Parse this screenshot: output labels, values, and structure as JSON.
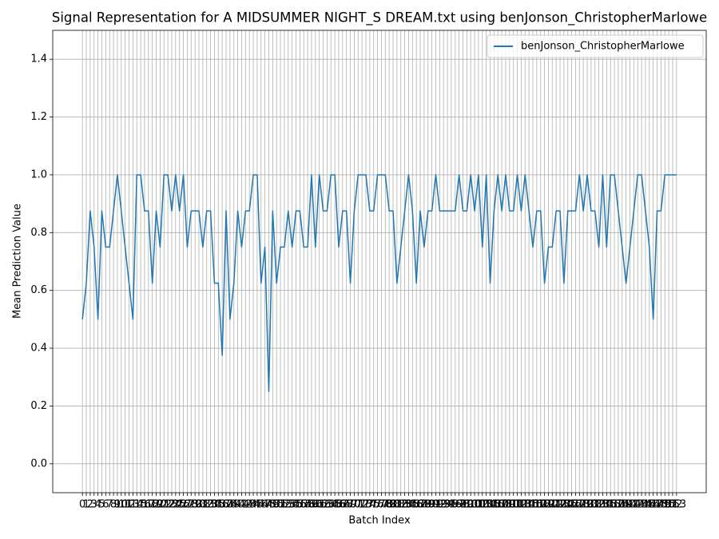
{
  "chart_data": {
    "type": "line",
    "title": "Signal Representation for A MIDSUMMER NIGHT_S DREAM.txt using benJonson_ChristopherMarlowe",
    "xlabel": "Batch Index",
    "ylabel": "Mean Prediction Value",
    "x": [
      0,
      1,
      2,
      3,
      4,
      5,
      6,
      7,
      8,
      9,
      10,
      11,
      12,
      13,
      14,
      15,
      16,
      17,
      18,
      19,
      20,
      21,
      22,
      23,
      24,
      25,
      26,
      27,
      28,
      29,
      30,
      31,
      32,
      33,
      34,
      35,
      36,
      37,
      38,
      39,
      40,
      41,
      42,
      43,
      44,
      45,
      46,
      47,
      48,
      49,
      50,
      51,
      52,
      53,
      54,
      55,
      56,
      57,
      58,
      59,
      60,
      61,
      62,
      63,
      64,
      65,
      66,
      67,
      68,
      69,
      70,
      71,
      72,
      73,
      74,
      75,
      76,
      77,
      78,
      79,
      80,
      81,
      82,
      83,
      84,
      85,
      86,
      87,
      88,
      89,
      90,
      91,
      92,
      93,
      94,
      95,
      96,
      97,
      98,
      99,
      100,
      101,
      102,
      103,
      104,
      105,
      106,
      107,
      108,
      109,
      110,
      111,
      112,
      113,
      114,
      115,
      116,
      117,
      118,
      119,
      120,
      121,
      122,
      123,
      124,
      125,
      126,
      127,
      128,
      129,
      130,
      131,
      132,
      133,
      134,
      135,
      136,
      137,
      138,
      139,
      140,
      141,
      142,
      143,
      144,
      145,
      146,
      147,
      148,
      149,
      150,
      151,
      152,
      153
    ],
    "series": [
      {
        "name": "benJonson_ChristopherMarlowe",
        "color": "#1f77b4",
        "values": [
          0.5,
          0.625,
          0.875,
          0.75,
          0.5,
          0.875,
          0.75,
          0.75,
          0.875,
          1.0,
          0.875,
          0.75,
          0.625,
          0.5,
          1.0,
          1.0,
          0.875,
          0.875,
          0.625,
          0.875,
          0.75,
          1.0,
          1.0,
          0.875,
          1.0,
          0.875,
          1.0,
          0.75,
          0.875,
          0.875,
          0.875,
          0.75,
          0.875,
          0.875,
          0.625,
          0.625,
          0.375,
          0.875,
          0.5,
          0.625,
          0.875,
          0.75,
          0.875,
          0.875,
          1.0,
          1.0,
          0.625,
          0.75,
          0.25,
          0.875,
          0.625,
          0.75,
          0.75,
          0.875,
          0.75,
          0.875,
          0.875,
          0.75,
          0.75,
          1.0,
          0.75,
          1.0,
          0.875,
          0.875,
          1.0,
          1.0,
          0.75,
          0.875,
          0.875,
          0.625,
          0.875,
          1.0,
          1.0,
          1.0,
          0.875,
          0.875,
          1.0,
          1.0,
          1.0,
          0.875,
          0.875,
          0.625,
          0.75,
          0.875,
          1.0,
          0.875,
          0.625,
          0.875,
          0.75,
          0.875,
          0.875,
          1.0,
          0.875,
          0.875,
          0.875,
          0.875,
          0.875,
          1.0,
          0.875,
          0.875,
          1.0,
          0.875,
          1.0,
          0.75,
          1.0,
          0.625,
          0.875,
          1.0,
          0.875,
          1.0,
          0.875,
          0.875,
          1.0,
          0.875,
          1.0,
          0.875,
          0.75,
          0.875,
          0.875,
          0.625,
          0.75,
          0.75,
          0.875,
          0.875,
          0.625,
          0.875,
          0.875,
          0.875,
          1.0,
          0.875,
          1.0,
          0.875,
          0.875,
          0.75,
          1.0,
          0.75,
          1.0,
          1.0,
          0.875,
          0.75,
          0.625,
          0.75,
          0.875,
          1.0,
          1.0,
          0.875,
          0.75,
          0.5,
          0.875,
          0.875,
          1.0,
          1.0,
          1.0,
          1.0
        ]
      }
    ],
    "xlim": [
      -7.65,
      160.65
    ],
    "xticks": [
      0,
      1,
      2,
      3,
      4,
      5,
      6,
      7,
      8,
      9,
      10,
      11,
      12,
      13,
      14,
      15,
      16,
      17,
      18,
      19,
      20,
      21,
      22,
      23,
      24,
      25,
      26,
      27,
      28,
      29,
      30,
      31,
      32,
      33,
      34,
      35,
      36,
      37,
      38,
      39,
      40,
      41,
      42,
      43,
      44,
      45,
      46,
      47,
      48,
      49,
      50,
      51,
      52,
      53,
      54,
      55,
      56,
      57,
      58,
      59,
      60,
      61,
      62,
      63,
      64,
      65,
      66,
      67,
      68,
      69,
      70,
      71,
      72,
      73,
      74,
      75,
      76,
      77,
      78,
      79,
      80,
      81,
      82,
      83,
      84,
      85,
      86,
      87,
      88,
      89,
      90,
      91,
      92,
      93,
      94,
      95,
      96,
      97,
      98,
      99,
      100,
      101,
      102,
      103,
      104,
      105,
      106,
      107,
      108,
      109,
      110,
      111,
      112,
      113,
      114,
      115,
      116,
      117,
      118,
      119,
      120,
      121,
      122,
      123,
      124,
      125,
      126,
      127,
      128,
      129,
      130,
      131,
      132,
      133,
      134,
      135,
      136,
      137,
      138,
      139,
      140,
      141,
      142,
      143,
      144,
      145,
      146,
      147,
      148,
      149,
      150,
      151,
      152,
      153
    ],
    "ylim": [
      -0.1,
      1.5
    ],
    "yticks": [
      {
        "value": 0,
        "label": "0.0"
      },
      {
        "value": 0.2,
        "label": "0.2"
      },
      {
        "value": 0.4,
        "label": "0.4"
      },
      {
        "value": 0.6,
        "label": "0.6"
      },
      {
        "value": 0.8,
        "label": "0.8"
      },
      {
        "value": 1.0,
        "label": "1.0"
      },
      {
        "value": 1.2,
        "label": "1.2"
      },
      {
        "value": 1.4,
        "label": "1.4"
      }
    ],
    "grid": true,
    "legend": "upper right"
  }
}
